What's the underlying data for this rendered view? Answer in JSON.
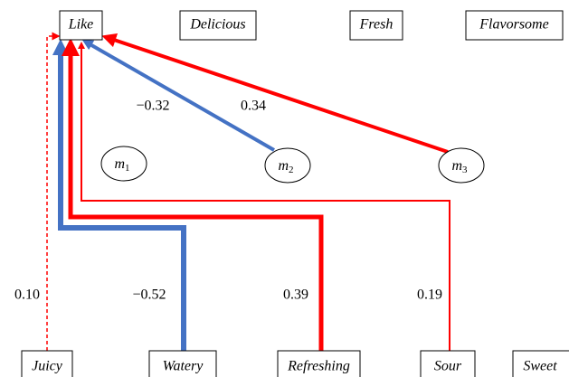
{
  "top_nodes": [
    "Like",
    "Delicious",
    "Fresh",
    "Flavorsome"
  ],
  "mediators": [
    {
      "base": "m",
      "sub": "1"
    },
    {
      "base": "m",
      "sub": "2"
    },
    {
      "base": "m",
      "sub": "3"
    }
  ],
  "bottom_nodes": [
    "Juicy",
    "Watery",
    "Refreshing",
    "Sour",
    "Sweet"
  ],
  "edges": [
    {
      "from": "Juicy",
      "coef": "0.10"
    },
    {
      "from": "Watery",
      "coef": "−0.52"
    },
    {
      "from": "Refreshing",
      "coef": "0.39"
    },
    {
      "from": "Sour",
      "coef": "0.19"
    },
    {
      "from": "m2",
      "coef": "−0.32"
    },
    {
      "from": "m3",
      "coef": "0.34"
    }
  ]
}
